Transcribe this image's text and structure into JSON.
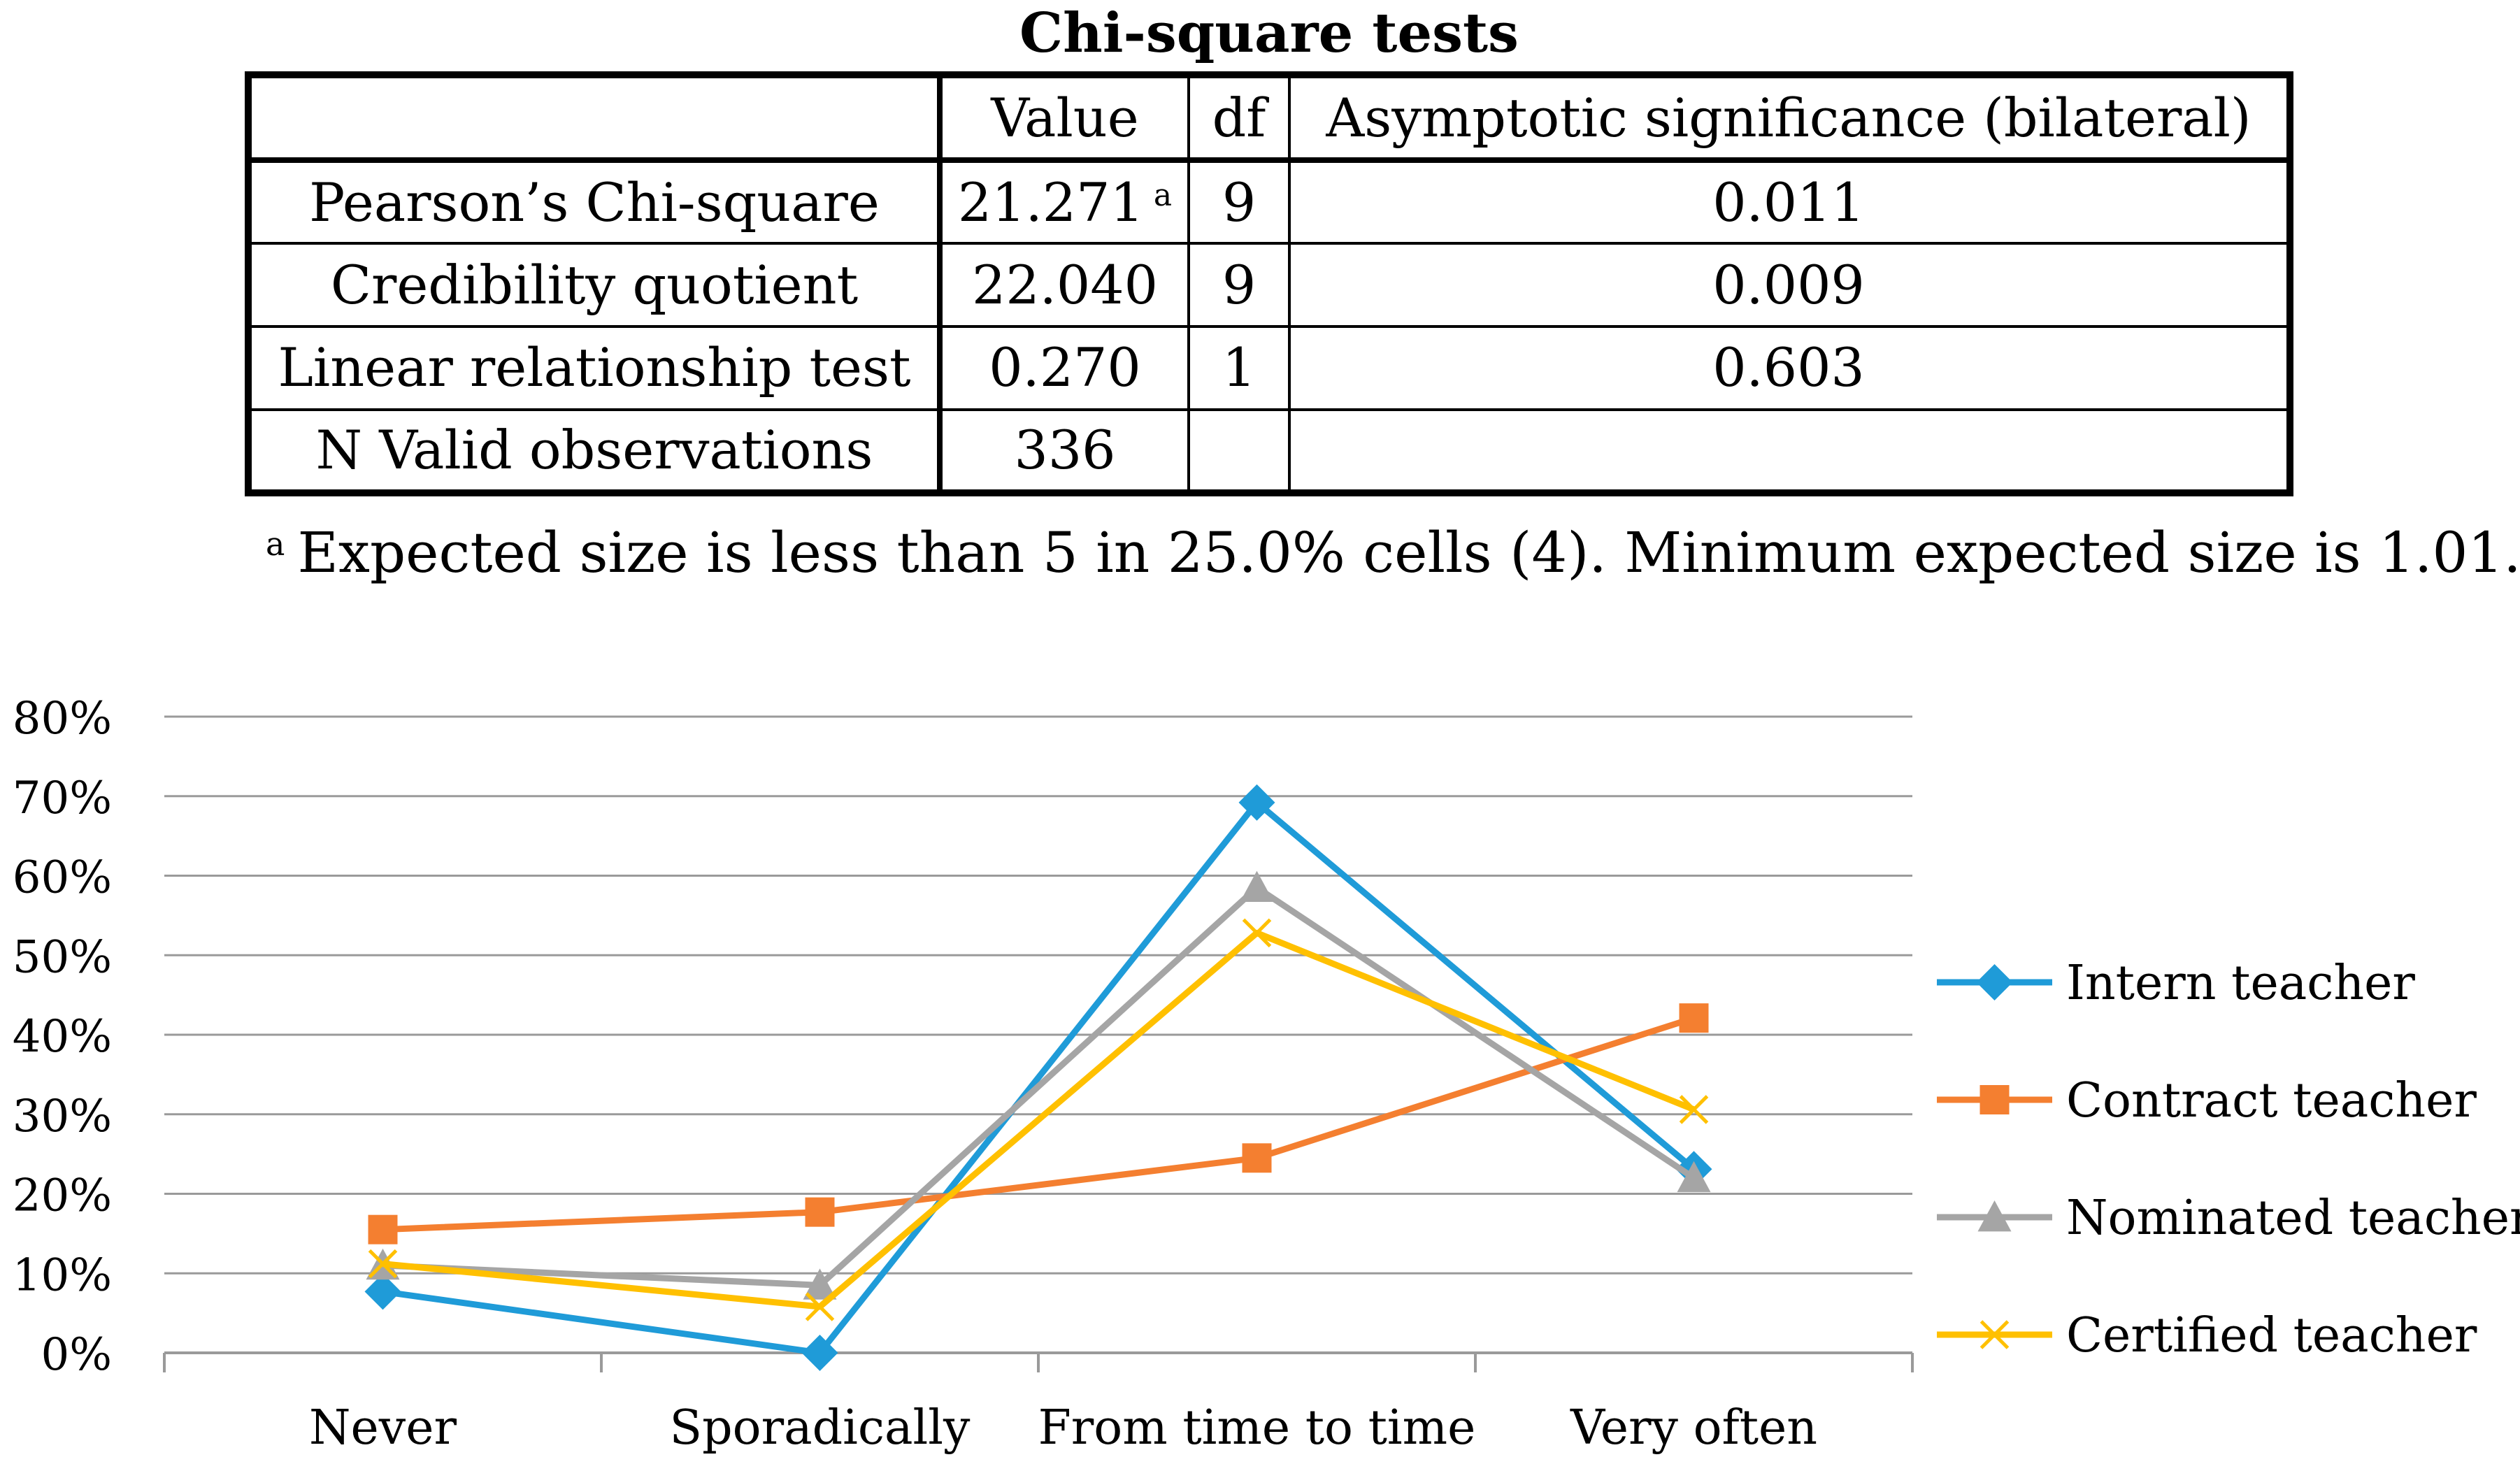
{
  "table": {
    "title": "Chi-square tests",
    "headers": [
      "",
      "Value",
      "df",
      "Asymptotic significance (bilateral)"
    ],
    "rows": [
      {
        "label": "Pearson’s Chi-square",
        "value": "21.271",
        "footnote_mark": "a",
        "df": "9",
        "sig": "0.011"
      },
      {
        "label": "Credibility quotient",
        "value": "22.040",
        "df": "9",
        "sig": "0.009"
      },
      {
        "label": "Linear relationship test",
        "value": "0.270",
        "df": "1",
        "sig": "0.603"
      },
      {
        "label": "N Valid observations",
        "value": "336",
        "df": "",
        "sig": ""
      }
    ],
    "footnote_mark": "a",
    "footnote": "Expected size is less than 5 in 25.0% cells (4). Minimum expected size is 1.01."
  },
  "chart_data": {
    "type": "line",
    "title": "",
    "xlabel": "",
    "ylabel": "",
    "categories": [
      "Never",
      "Sporadically",
      "From time to time",
      "Very often"
    ],
    "ylim": [
      0,
      80
    ],
    "yticks": [
      "0%",
      "10%",
      "20%",
      "30%",
      "40%",
      "50%",
      "60%",
      "70%",
      "80%"
    ],
    "legend_position": "right",
    "grid": true,
    "series": [
      {
        "name": "Intern teacher",
        "color": "#1F9BD8",
        "marker": "diamond",
        "values": [
          7.7,
          0.0,
          69.2,
          23.1
        ]
      },
      {
        "name": "Contract teacher",
        "color": "#F47F30",
        "marker": "square",
        "values": [
          15.5,
          17.7,
          24.5,
          42.1
        ]
      },
      {
        "name": "Nominated teacher",
        "color": "#A5A5A5",
        "marker": "triangle",
        "values": [
          11.0,
          8.5,
          58.5,
          22.0
        ]
      },
      {
        "name": "Certified teacher",
        "color": "#FFC000",
        "marker": "x",
        "values": [
          11.2,
          5.8,
          52.8,
          30.6
        ]
      }
    ]
  }
}
